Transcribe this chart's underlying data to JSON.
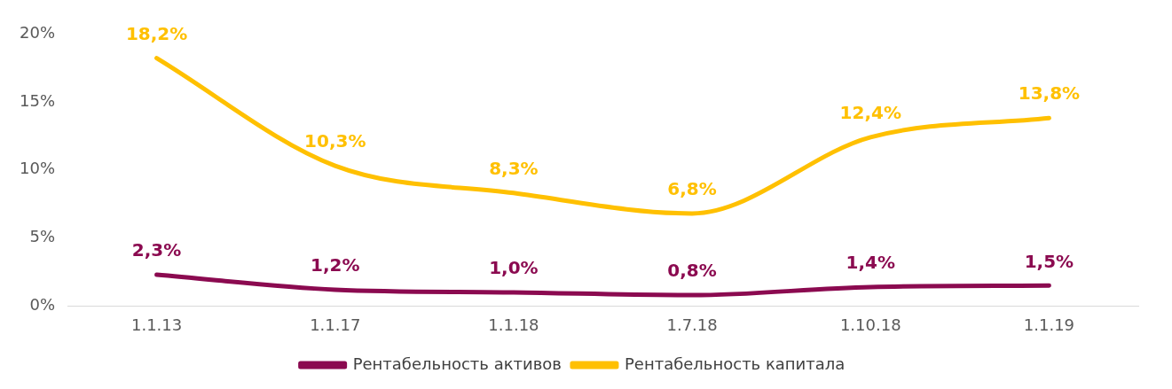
{
  "chart_data": {
    "type": "line",
    "categories": [
      "1.1.13",
      "1.1.17",
      "1.1.18",
      "1.7.18",
      "1.10.18",
      "1.1.19"
    ],
    "series": [
      {
        "name": "Рентабельность активов",
        "color": "#8b0a50",
        "values": [
          2.3,
          1.2,
          1.0,
          0.8,
          1.4,
          1.5
        ],
        "value_labels": [
          "2,3%",
          "1,2%",
          "1,0%",
          "0,8%",
          "1,4%",
          "1,5%"
        ]
      },
      {
        "name": "Рентабельность капитала",
        "color": "#ffc000",
        "values": [
          18.2,
          10.3,
          8.3,
          6.8,
          12.4,
          13.8
        ],
        "value_labels": [
          "18,2%",
          "10,3%",
          "8,3%",
          "6,8%",
          "12,4%",
          "13,8%"
        ]
      }
    ],
    "ylim": [
      0,
      20
    ],
    "yticks": [
      {
        "value": 0,
        "label": "0%"
      },
      {
        "value": 5,
        "label": "5%"
      },
      {
        "value": 10,
        "label": "10%"
      },
      {
        "value": 15,
        "label": "15%"
      },
      {
        "value": 20,
        "label": "20%"
      }
    ],
    "grid": false,
    "legend": "bottom",
    "marker": "none",
    "line_style": "solid"
  }
}
